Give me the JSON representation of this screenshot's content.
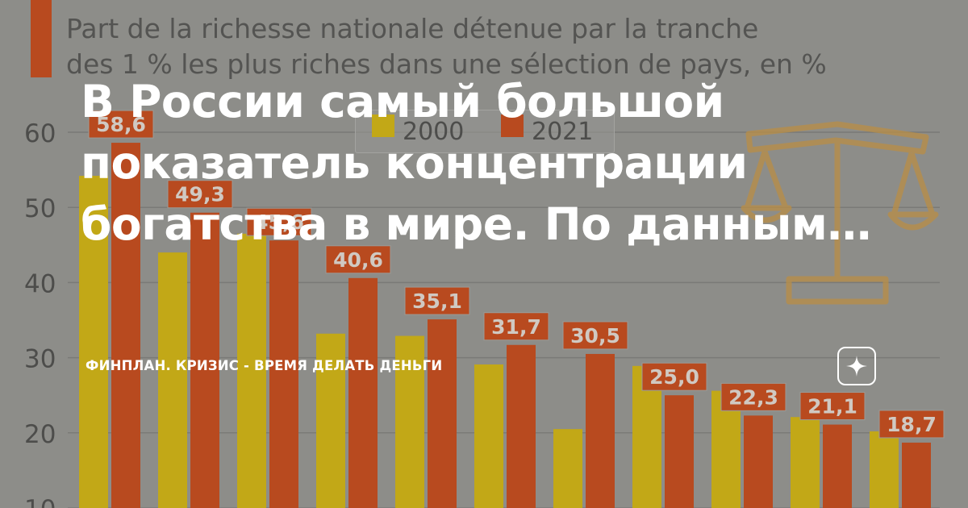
{
  "headline": "В России самый большой показатель концентрации богатства в мире. По данным…",
  "channel": {
    "name": "ФИНПЛАН. КРИЗИС - ВРЕМЯ ДЕЛАТЬ ДЕНЬГИ"
  },
  "icons": {
    "channel_badge": "sparkle-star-icon",
    "decoration": "scales-icon"
  },
  "colors": {
    "background": "#8d8d89",
    "series_2000": "#c2a817",
    "series_2021": "#b84a1f",
    "headline_text": "#ffffff"
  },
  "chart_data": {
    "type": "bar",
    "title": "Part de la richesse nationale détenue par la tranche\ndes 1 % les plus riches dans une sélection de pays, en %",
    "legend": [
      "2000",
      "2021"
    ],
    "y_ticks": [
      "60",
      "50",
      "40",
      "30",
      "20",
      "10"
    ],
    "ylim": [
      10,
      63
    ],
    "grid": true,
    "legend_position": "top-center",
    "series": [
      {
        "name": "2000",
        "values": [
          54.2,
          44.0,
          46.5,
          33.2,
          32.9,
          29.1,
          20.5,
          28.9,
          25.6,
          22.1,
          20.2
        ]
      },
      {
        "name": "2021",
        "values": [
          58.6,
          49.3,
          45.6,
          40.6,
          35.1,
          31.7,
          30.5,
          25.0,
          22.3,
          21.1,
          18.7
        ]
      }
    ],
    "labels_2021": [
      "58,6",
      "49,3",
      "45,6",
      "40,6",
      "35,1",
      "31,7",
      "30,5",
      "25,0",
      "22,3",
      "21,1",
      "18,7"
    ]
  }
}
